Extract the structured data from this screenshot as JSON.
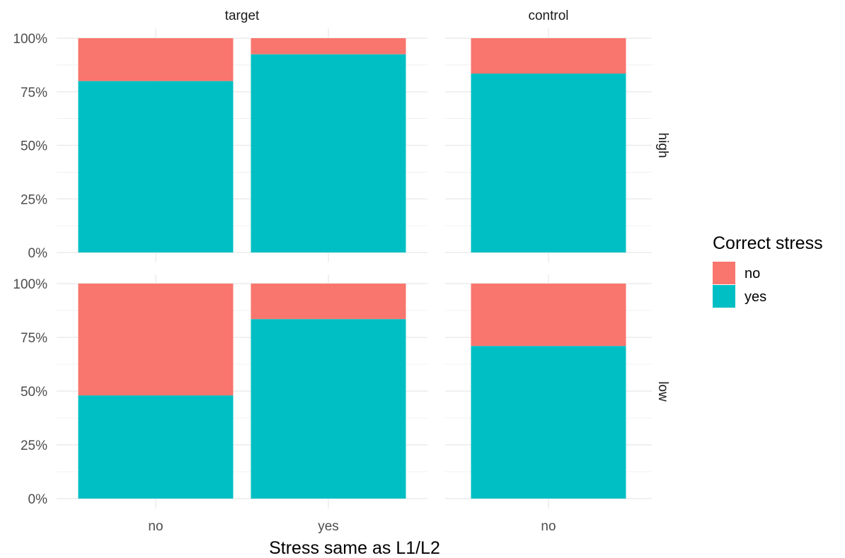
{
  "chart_data": {
    "type": "bar",
    "stacked": true,
    "position": "fill",
    "xlabel": "Stress same as L1/L2",
    "ylabel": "",
    "ylim": [
      0,
      1
    ],
    "y_ticks": [
      0,
      0.25,
      0.5,
      0.75,
      1
    ],
    "y_tick_labels": [
      "0%",
      "25%",
      "50%",
      "75%",
      "100%"
    ],
    "grid": true,
    "facet_cols": [
      {
        "label": "target",
        "categories": [
          "no",
          "yes"
        ]
      },
      {
        "label": "control",
        "categories": [
          "no"
        ]
      }
    ],
    "facet_rows": [
      "high",
      "low"
    ],
    "legend": {
      "title": "Correct stress",
      "placement": "right",
      "entries": [
        {
          "name": "no",
          "color": "#F8766D"
        },
        {
          "name": "yes",
          "color": "#00BFC4"
        }
      ]
    },
    "panels": [
      {
        "row": "high",
        "col": "target",
        "bars": [
          {
            "x": "no",
            "yes": 0.8,
            "no": 0.2
          },
          {
            "x": "yes",
            "yes": 0.925,
            "no": 0.075
          }
        ]
      },
      {
        "row": "high",
        "col": "control",
        "bars": [
          {
            "x": "no",
            "yes": 0.835,
            "no": 0.165
          }
        ]
      },
      {
        "row": "low",
        "col": "target",
        "bars": [
          {
            "x": "no",
            "yes": 0.48,
            "no": 0.52
          },
          {
            "x": "yes",
            "yes": 0.835,
            "no": 0.165
          }
        ]
      },
      {
        "row": "low",
        "col": "control",
        "bars": [
          {
            "x": "no",
            "yes": 0.71,
            "no": 0.29
          }
        ]
      }
    ]
  }
}
